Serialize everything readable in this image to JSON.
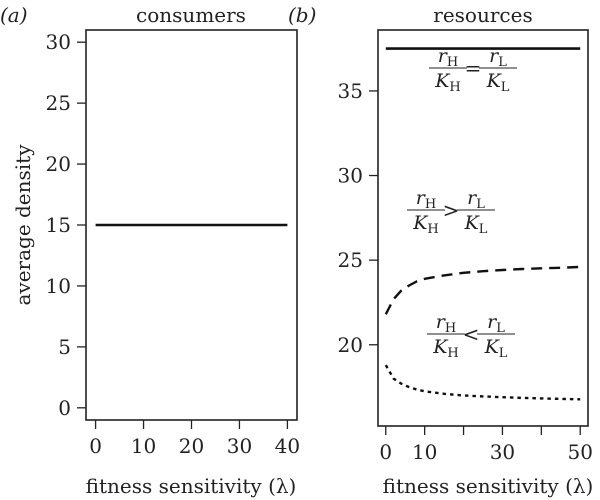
{
  "chart_data": [
    {
      "type": "line",
      "panel_letter": "(a)",
      "title": "consumers",
      "xlabel": "fitness sensitivity (λ)",
      "ylabel": "average density",
      "xlim": [
        -2,
        42
      ],
      "ylim": [
        -1,
        31
      ],
      "xticks": [
        0,
        10,
        20,
        30,
        40
      ],
      "yticks": [
        0,
        5,
        10,
        15,
        20,
        25,
        30
      ],
      "grid": false,
      "series": [
        {
          "style": "solid",
          "x": [
            0,
            10,
            20,
            30,
            40
          ],
          "y": [
            15,
            15,
            15,
            15,
            15
          ]
        }
      ]
    },
    {
      "type": "line",
      "panel_letter": "(b)",
      "title": "resources",
      "xlabel": "fitness sensitivity (λ)",
      "ylabel": "",
      "xlim": [
        -2,
        52
      ],
      "ylim": [
        15.2,
        38.6
      ],
      "xticks": [
        0,
        10,
        20,
        30,
        40,
        50
      ],
      "xtick_labels": [
        "0",
        "10",
        "",
        "30",
        "",
        "50"
      ],
      "yticks": [
        20,
        25,
        30,
        35
      ],
      "grid": false,
      "series": [
        {
          "style": "solid",
          "annotation": {
            "lhs_num": "r",
            "lhs_num_sub": "H",
            "lhs_den": "K",
            "lhs_den_sub": "H",
            "op": "=",
            "rhs_num": "r",
            "rhs_num_sub": "L",
            "rhs_den": "K",
            "rhs_den_sub": "L"
          },
          "x": [
            0,
            10,
            20,
            30,
            40,
            50
          ],
          "y": [
            37.5,
            37.5,
            37.5,
            37.5,
            37.5,
            37.5
          ]
        },
        {
          "style": "dashed",
          "annotation": {
            "lhs_num": "r",
            "lhs_num_sub": "H",
            "lhs_den": "K",
            "lhs_den_sub": "H",
            "op": ">",
            "rhs_num": "r",
            "rhs_num_sub": "L",
            "rhs_den": "K",
            "rhs_den_sub": "L"
          },
          "x": [
            0,
            2,
            4,
            6,
            8,
            10,
            15,
            20,
            25,
            30,
            35,
            40,
            45,
            50
          ],
          "y": [
            21.8,
            22.7,
            23.2,
            23.5,
            23.75,
            23.9,
            24.1,
            24.25,
            24.35,
            24.42,
            24.48,
            24.52,
            24.55,
            24.6
          ]
        },
        {
          "style": "dotted",
          "annotation": {
            "lhs_num": "r",
            "lhs_num_sub": "H",
            "lhs_den": "K",
            "lhs_den_sub": "H",
            "op": "<",
            "rhs_num": "r",
            "rhs_num_sub": "L",
            "rhs_den": "K",
            "rhs_den_sub": "L"
          },
          "x": [
            0,
            2,
            4,
            6,
            8,
            10,
            15,
            20,
            25,
            30,
            35,
            40,
            45,
            50
          ],
          "y": [
            18.8,
            18.0,
            17.7,
            17.5,
            17.35,
            17.25,
            17.1,
            17.0,
            16.95,
            16.9,
            16.86,
            16.83,
            16.8,
            16.78
          ]
        }
      ]
    }
  ]
}
